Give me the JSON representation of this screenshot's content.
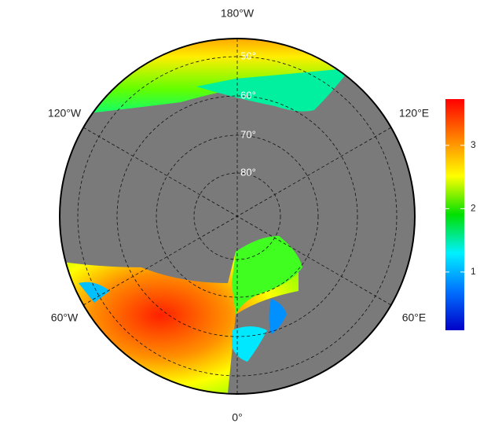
{
  "map": {
    "meridian_labels": [
      "180°W",
      "120°W",
      "120°E",
      "60°W",
      "60°E",
      "0°"
    ],
    "parallel_labels": [
      "50°",
      "60°",
      "70°",
      "80°"
    ],
    "colorbar": {
      "ylim": [
        0.08,
        3.73
      ],
      "yticks": [
        1,
        2,
        3
      ],
      "colors": [
        "#0000c8",
        "#0070ff",
        "#00f0ff",
        "#00e000",
        "#ffff00",
        "#ff8000",
        "#ff0000"
      ]
    }
  }
}
